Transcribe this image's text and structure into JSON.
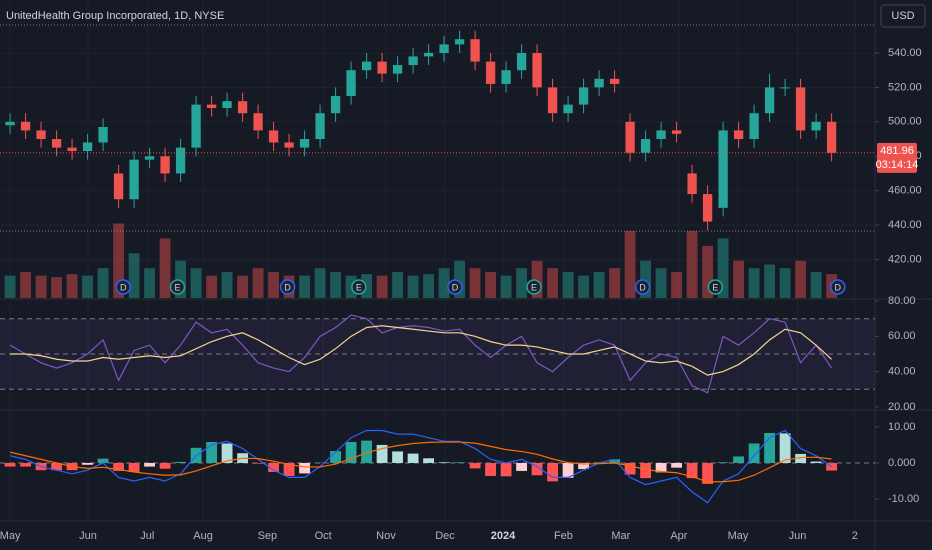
{
  "chart_data": [
    {
      "type": "candlestick",
      "title": "UnitedHealth Group Incorporated, 1D, NYSE",
      "currency": "USD",
      "x": [
        0,
        1,
        2,
        3,
        4,
        5,
        6,
        7,
        8,
        9,
        10,
        11,
        12,
        13,
        14,
        15,
        16,
        17,
        18,
        19,
        20,
        21,
        22,
        23,
        24,
        25,
        26,
        27,
        28,
        29,
        30,
        31,
        32,
        33,
        34,
        35,
        36,
        37,
        38,
        39,
        40,
        41,
        42,
        43,
        44,
        45,
        46,
        47,
        48,
        49,
        50,
        51,
        52,
        53
      ],
      "open": [
        498,
        500,
        495,
        490,
        485,
        483,
        488,
        470,
        455,
        478,
        480,
        470,
        485,
        510,
        508,
        512,
        505,
        495,
        488,
        485,
        490,
        505,
        515,
        530,
        535,
        528,
        533,
        538,
        540,
        545,
        548,
        535,
        522,
        530,
        540,
        520,
        505,
        510,
        520,
        525,
        500,
        482,
        490,
        495,
        470,
        458,
        450,
        495,
        490,
        505,
        520,
        520,
        495,
        500
      ],
      "high": [
        505,
        505,
        500,
        495,
        490,
        493,
        502,
        475,
        483,
        485,
        485,
        490,
        515,
        515,
        517,
        517,
        510,
        500,
        493,
        495,
        510,
        520,
        535,
        540,
        540,
        538,
        543,
        545,
        550,
        553,
        553,
        540,
        535,
        545,
        545,
        525,
        515,
        525,
        530,
        530,
        505,
        495,
        500,
        500,
        475,
        463,
        500,
        500,
        510,
        528,
        525,
        525,
        505,
        505
      ],
      "low": [
        493,
        490,
        485,
        480,
        478,
        478,
        483,
        450,
        450,
        473,
        465,
        465,
        480,
        503,
        503,
        500,
        490,
        483,
        480,
        480,
        485,
        500,
        510,
        525,
        523,
        523,
        528,
        533,
        535,
        540,
        530,
        517,
        517,
        525,
        515,
        500,
        500,
        505,
        515,
        517,
        477,
        477,
        485,
        488,
        453,
        437,
        445,
        485,
        485,
        500,
        515,
        490,
        490,
        477
      ],
      "close": [
        500,
        495,
        490,
        485,
        483,
        488,
        497,
        455,
        478,
        480,
        470,
        485,
        510,
        508,
        512,
        505,
        495,
        488,
        485,
        490,
        505,
        515,
        530,
        535,
        528,
        533,
        538,
        540,
        545,
        548,
        535,
        522,
        530,
        540,
        520,
        505,
        510,
        520,
        525,
        522,
        482,
        490,
        495,
        493,
        458,
        442,
        495,
        490,
        505,
        520,
        520,
        495,
        500,
        481.96
      ],
      "volume": [
        3,
        3.5,
        3,
        2.8,
        3.2,
        3,
        4,
        10,
        6,
        4,
        8,
        5,
        4,
        3,
        3.5,
        3,
        4,
        3.5,
        3,
        3,
        4,
        3.5,
        3,
        3.2,
        3,
        3.5,
        3,
        3.2,
        4,
        5,
        4,
        3.5,
        3,
        4,
        5,
        4,
        3.5,
        3,
        3.5,
        4,
        9,
        5,
        4,
        3.5,
        9,
        7,
        8,
        5,
        4,
        4.5,
        4,
        5,
        3.5,
        3.2
      ],
      "volume_ylim": [
        0,
        40
      ],
      "up_color": "#26a69a",
      "down_color": "#ef5350",
      "last_price": {
        "value": 481.96,
        "label": "481.96"
      },
      "countdown": "03:14:14",
      "high_line": 556.3,
      "low_line": 436.5,
      "xlim": [
        -0.65,
        55.8
      ],
      "ylim": [
        397.6,
        570.8
      ],
      "yticks": [
        {
          "value": 420,
          "label": "420.00"
        },
        {
          "value": 440,
          "label": "440.00"
        },
        {
          "value": 460,
          "label": "460.00"
        },
        {
          "value": 480,
          "label": "480.00"
        },
        {
          "value": 500,
          "label": "500.00"
        },
        {
          "value": 520,
          "label": "520.00"
        },
        {
          "value": 540,
          "label": "540.00"
        }
      ],
      "xticks": [
        {
          "value": 0,
          "label": "May"
        },
        {
          "value": 5.03,
          "label": "Jun"
        },
        {
          "value": 8.85,
          "label": "Jul"
        },
        {
          "value": 12.45,
          "label": "Aug"
        },
        {
          "value": 16.6,
          "label": "Sep"
        },
        {
          "value": 20.2,
          "label": "Oct"
        },
        {
          "value": 24.25,
          "label": "Nov"
        },
        {
          "value": 28.06,
          "label": "Dec"
        },
        {
          "value": 31.8,
          "label": "2024"
        },
        {
          "value": 35.7,
          "label": "Feb"
        },
        {
          "value": 39.4,
          "label": "Mar"
        },
        {
          "value": 43.15,
          "label": "Apr"
        },
        {
          "value": 46.96,
          "label": "May"
        },
        {
          "value": 50.8,
          "label": "Jun"
        },
        {
          "value": 54.5,
          "label": "2"
        }
      ],
      "events": [
        {
          "x": 7.3,
          "label": "D"
        },
        {
          "x": 10.8,
          "label": "E"
        },
        {
          "x": 17.9,
          "label": "D"
        },
        {
          "x": 22.5,
          "label": "E"
        },
        {
          "x": 28.7,
          "label": "D"
        },
        {
          "x": 33.8,
          "label": "E"
        },
        {
          "x": 40.8,
          "label": "D"
        },
        {
          "x": 45.5,
          "label": "E"
        },
        {
          "x": 53.4,
          "label": "D"
        }
      ],
      "grid": true
    },
    {
      "type": "line",
      "series": [
        {
          "color": "#7e57c2",
          "values": [
            55,
            50,
            45,
            42,
            45,
            50,
            58,
            35,
            52,
            55,
            45,
            55,
            68,
            62,
            64,
            55,
            45,
            42,
            40,
            48,
            60,
            65,
            72,
            70,
            62,
            65,
            66,
            65,
            63,
            64,
            55,
            48,
            55,
            60,
            45,
            40,
            48,
            55,
            58,
            55,
            35,
            45,
            50,
            48,
            32,
            28,
            60,
            55,
            62,
            70,
            68,
            45,
            55,
            42
          ]
        },
        {
          "color": "#f7d58b",
          "values": [
            50,
            50,
            49,
            47,
            46,
            46,
            48,
            47,
            48,
            49,
            48,
            49,
            53,
            57,
            60,
            62,
            58,
            53,
            48,
            44,
            47,
            53,
            60,
            65,
            66,
            65,
            64,
            63,
            62,
            62,
            60,
            57,
            55,
            55,
            54,
            52,
            50,
            50,
            52,
            54,
            50,
            46,
            45,
            46,
            43,
            38,
            40,
            44,
            50,
            58,
            64,
            62,
            55,
            47
          ]
        }
      ],
      "bands": [
        70,
        50,
        30
      ],
      "ylim": [
        18.8,
        80.6
      ],
      "yticks": [
        {
          "value": 20,
          "label": "20.00"
        },
        {
          "value": 40,
          "label": "40.00"
        },
        {
          "value": 60,
          "label": "60.00"
        },
        {
          "value": 80,
          "label": "80.00"
        }
      ]
    },
    {
      "type": "macd",
      "series": [
        {
          "color": "#2962ff",
          "values": [
            2,
            1,
            -1,
            -2,
            -3,
            -2,
            0,
            -4,
            -5,
            -4,
            -5,
            -3,
            2,
            5,
            6,
            4,
            1,
            -2,
            -4,
            -4,
            -1,
            3,
            7,
            9,
            9,
            8,
            8,
            7,
            6,
            6,
            4,
            1,
            0,
            1,
            -1,
            -4,
            -4,
            -2,
            0,
            1,
            -4,
            -6,
            -5,
            -4,
            -8,
            -11,
            -5,
            -3,
            2,
            7,
            9,
            4,
            2,
            -1
          ]
        },
        {
          "color": "#ff6d00",
          "values": [
            3,
            2,
            1,
            0,
            -1,
            -1.5,
            -1.2,
            -1.8,
            -2.5,
            -3,
            -3.4,
            -3.3,
            -2.2,
            -0.8,
            0.6,
            1.3,
            1.2,
            0.5,
            -0.4,
            -1.1,
            -1.1,
            -0.3,
            1.2,
            2.8,
            4,
            4.8,
            5.4,
            5.7,
            5.8,
            5.8,
            5.5,
            4.6,
            3.7,
            3.2,
            2.4,
            1.1,
            0.1,
            -0.3,
            -0.2,
            0,
            -0.8,
            -1.8,
            -2.4,
            -2.7,
            -3.8,
            -5.2,
            -5.2,
            -4.8,
            -3.4,
            -1.3,
            0.8,
            1.5,
            1.6,
            1.1
          ]
        }
      ],
      "histogram": {
        "values": [
          -1,
          -1,
          -2,
          -2,
          -2,
          -0.5,
          1.2,
          -2.2,
          -2.5,
          -1,
          -1.6,
          0.3,
          4.2,
          5.8,
          5.4,
          2.7,
          -0.2,
          -2.5,
          -3.6,
          -2.9,
          0.1,
          3.3,
          5.8,
          6.2,
          5,
          3.2,
          2.6,
          1.3,
          0.2,
          0.2,
          -1.5,
          -3.6,
          -3.7,
          -2.2,
          -3.4,
          -5.1,
          -4.1,
          -1.7,
          0.2,
          1,
          -3.2,
          -4.2,
          -2.6,
          -1.3,
          -4.2,
          -5.8,
          0.2,
          1.8,
          5.4,
          8.3,
          8.2,
          2.5,
          0.4,
          -2.1
        ],
        "colors": [
          "#26a69a",
          "#b2dfdb",
          "#ffcdd2",
          "#ff5252"
        ]
      },
      "ylim": [
        -15.8,
        14.4
      ],
      "yticks": [
        {
          "value": -10,
          "label": "-10.00"
        },
        {
          "value": 0,
          "label": "0.000"
        },
        {
          "value": 10,
          "label": "10.00"
        }
      ]
    }
  ]
}
